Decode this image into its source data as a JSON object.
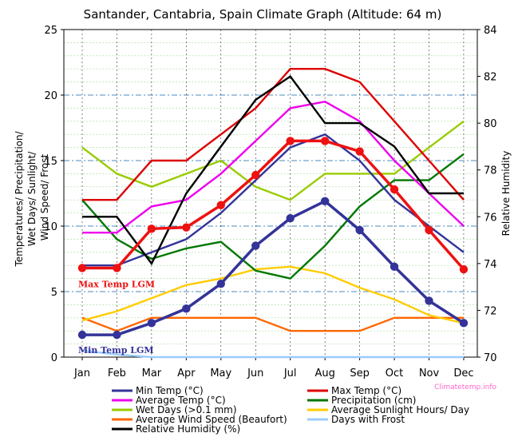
{
  "chart_data": {
    "type": "line",
    "title": "Santander, Cantabria, Spain Climate Graph (Altitude: 64 m)",
    "ylabel_left": "Temperatures/ Precipitation/ Wet Days/ Sunlight/ Wind Speed/ Frost",
    "ylabel_right": "Relative Humidity",
    "categories": [
      "Jan",
      "Feb",
      "Mar",
      "Apr",
      "May",
      "Jun",
      "Jul",
      "Aug",
      "Sep",
      "Oct",
      "Nov",
      "Dec"
    ],
    "ylim_left": [
      0,
      25
    ],
    "yticks_left": [
      "0",
      "5",
      "10",
      "15",
      "20",
      "25"
    ],
    "ylim_right": [
      70,
      84
    ],
    "yticks_right": [
      "70",
      "72",
      "74",
      "76",
      "78",
      "80",
      "82",
      "84"
    ],
    "grid": true,
    "legend_position": "bottom",
    "watermark": "Climatetemp.info",
    "series": [
      {
        "name": "Min Temp (°C)",
        "color": "#333399",
        "axis": "left",
        "values": [
          7,
          7,
          8,
          9,
          11,
          13.5,
          16,
          17,
          15,
          12,
          10,
          8
        ]
      },
      {
        "name": "Max Temp (°C)",
        "color": "#dd0000",
        "axis": "left",
        "values": [
          12,
          12,
          15,
          15,
          17,
          19,
          22,
          22,
          21,
          18,
          15,
          12
        ]
      },
      {
        "name": "Average Temp (°C)",
        "color": "#ee00ee",
        "axis": "left",
        "values": [
          9.5,
          9.5,
          11.5,
          12,
          14,
          16.5,
          19,
          19.5,
          18,
          15,
          12.5,
          10
        ]
      },
      {
        "name": "Precipitation (cm)",
        "color": "#007700",
        "axis": "left",
        "values": [
          12,
          9,
          7.5,
          8.3,
          8.8,
          6.6,
          6,
          8.5,
          11.5,
          13.5,
          13.5,
          15.5
        ]
      },
      {
        "name": "Wet Days (>0.1 mm)",
        "color": "#99cc00",
        "axis": "left",
        "values": [
          16,
          14,
          13,
          14,
          15,
          13,
          12,
          14,
          14,
          14,
          16,
          18
        ]
      },
      {
        "name": "Average Sunlight Hours/ Day",
        "color": "#ffcc00",
        "axis": "left",
        "values": [
          2.8,
          3.5,
          4.5,
          5.5,
          6,
          6.7,
          6.9,
          6.4,
          5.3,
          4.4,
          3.2,
          2.6
        ]
      },
      {
        "name": "Average Wind Speed (Beaufort)",
        "color": "#ff6600",
        "axis": "left",
        "values": [
          3,
          2,
          3,
          3,
          3,
          3,
          2,
          2,
          2,
          3,
          3,
          3
        ]
      },
      {
        "name": "Days with Frost",
        "color": "#99ccff",
        "axis": "left",
        "values": [
          0.5,
          0.2,
          0,
          0,
          0,
          0,
          0,
          0,
          0,
          0,
          0,
          0
        ]
      },
      {
        "name": "Relative Humidity (%)",
        "color": "#000000",
        "axis": "right",
        "values": [
          76,
          76,
          74,
          77,
          79,
          81,
          82,
          80,
          80,
          79,
          77,
          77
        ]
      }
    ],
    "lgm_series": [
      {
        "name": "Max Temp LGM",
        "color": "#ee1111",
        "values": [
          6.8,
          6.8,
          9.8,
          9.9,
          11.6,
          13.9,
          16.5,
          16.5,
          15.7,
          12.8,
          9.7,
          6.7
        ]
      },
      {
        "name": "Min Temp LGM",
        "color": "#333399",
        "values": [
          1.7,
          1.7,
          2.6,
          3.7,
          5.6,
          8.5,
          10.6,
          11.9,
          9.7,
          6.9,
          4.3,
          2.6
        ]
      }
    ]
  }
}
